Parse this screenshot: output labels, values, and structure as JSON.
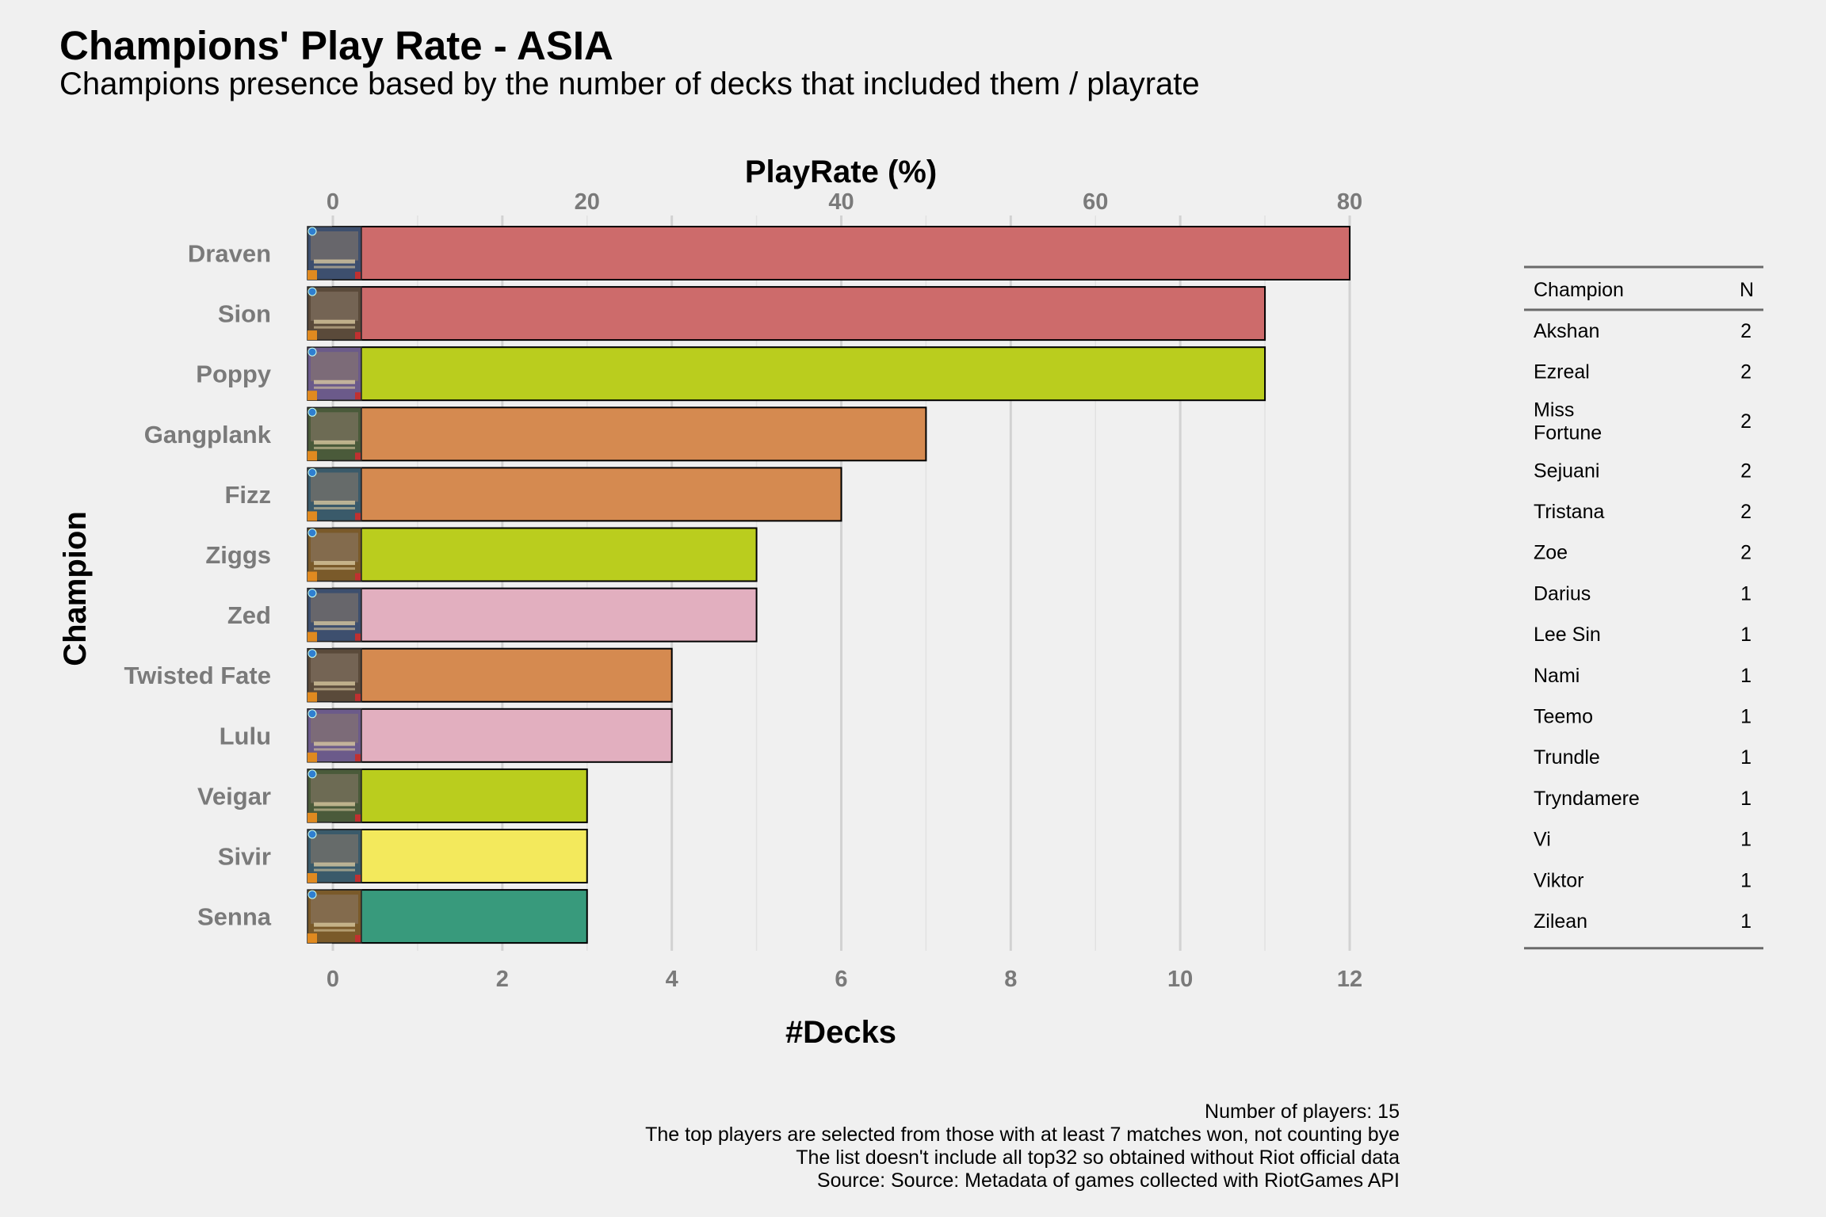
{
  "header": {
    "title": "Champions' Play Rate - ASIA",
    "subtitle": "Champions presence based by the number of decks that included them / playrate"
  },
  "caption": [
    "Number of players: 15",
    "The top players are selected from those with at least 7 matches won, not counting bye",
    "The list doesn't include all top32 so obtained without Riot official data",
    "Source: Source: Metadata of games collected with RiotGames API"
  ],
  "chart_data": [
    {
      "type": "bar",
      "orientation": "horizontal",
      "ylabel": "Champion",
      "xlabel": "#Decks",
      "x2label": "PlayRate (%)",
      "xlim": [
        0,
        12
      ],
      "xticks": [
        "0",
        "2",
        "4",
        "6",
        "8",
        "10",
        "12"
      ],
      "x2ticks": [
        "0",
        "20",
        "40",
        "60",
        "80"
      ],
      "grid": true,
      "categories": [
        "Draven",
        "Sion",
        "Poppy",
        "Gangplank",
        "Fizz",
        "Ziggs",
        "Zed",
        "Twisted Fate",
        "Lulu",
        "Veigar",
        "Sivir",
        "Senna"
      ],
      "values": [
        12,
        11,
        11,
        7,
        6,
        5,
        5,
        4,
        4,
        3,
        3,
        3
      ],
      "colors": [
        "#cd6b6b",
        "#cd6b6b",
        "#bacd1e",
        "#d58a50",
        "#d58a50",
        "#bacd1e",
        "#e2afbf",
        "#d58a50",
        "#e2afbf",
        "#bacd1e",
        "#f3e95c",
        "#389a7c"
      ]
    },
    {
      "type": "table",
      "columns": [
        "Champion",
        "N"
      ],
      "rows": [
        [
          "Akshan",
          "2"
        ],
        [
          "Ezreal",
          "2"
        ],
        [
          "Miss\nFortune",
          "2"
        ],
        [
          "Sejuani",
          "2"
        ],
        [
          "Tristana",
          "2"
        ],
        [
          "Zoe",
          "2"
        ],
        [
          "Darius",
          "1"
        ],
        [
          "Lee Sin",
          "1"
        ],
        [
          "Nami",
          "1"
        ],
        [
          "Teemo",
          "1"
        ],
        [
          "Trundle",
          "1"
        ],
        [
          "Tryndamere",
          "1"
        ],
        [
          "Vi",
          "1"
        ],
        [
          "Viktor",
          "1"
        ],
        [
          "Zilean",
          "1"
        ]
      ]
    }
  ]
}
